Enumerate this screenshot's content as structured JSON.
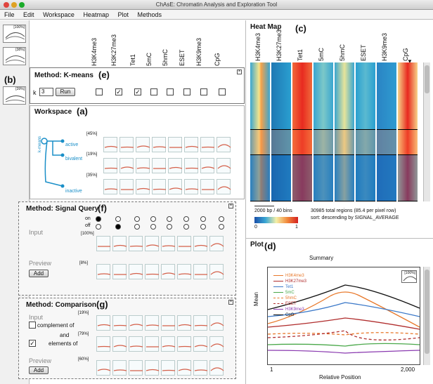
{
  "window": {
    "title": "ChAsE: Chromatin Analysis and Exploration Tool"
  },
  "menu": [
    "File",
    "Edit",
    "Workspace",
    "Heatmap",
    "Plot",
    "Methods"
  ],
  "columns": [
    "H3K4me3",
    "H3K27me3",
    "Tet1",
    "5mC",
    "5hmC",
    "ESET",
    "H3K9me3",
    "CpG"
  ],
  "sidebar": {
    "letter": "(b)",
    "thumbs": [
      "[100%]",
      "[38%]",
      "[39%]"
    ]
  },
  "kmeans": {
    "title": "Method: K-means",
    "letter": "(e)",
    "k_label": "k",
    "k_value": "3",
    "run_label": "Run",
    "checks": [
      false,
      true,
      true,
      false,
      false,
      false,
      false,
      false
    ]
  },
  "workspace": {
    "title": "Workspace",
    "letter": "(a)",
    "tree_label": "k-means",
    "clusters": [
      {
        "name": "active",
        "pct": "[45%]"
      },
      {
        "name": "bivalent",
        "pct": "[19%]"
      },
      {
        "name": "inactive",
        "pct": "[35%]"
      }
    ]
  },
  "signal_query": {
    "title": "Method: Signal Query",
    "letter": "(f)",
    "on_label": "on",
    "off_label": "off",
    "input_label": "Input",
    "input_pct": "[100%]",
    "preview_label": "Preview",
    "preview_pct": "[8%]",
    "add_label": "Add",
    "on_states": [
      true,
      false,
      false,
      false,
      false,
      false,
      false,
      false
    ],
    "off_states": [
      false,
      true,
      false,
      false,
      false,
      false,
      false,
      false
    ]
  },
  "comparison": {
    "title": "Method: Comparison",
    "letter": "(g)",
    "input_label": "Input",
    "row1_pct": "[19%]",
    "complement_label": "complement of",
    "and_label": "and",
    "row2_pct": "[79%]",
    "elements_label": "elements of",
    "complement_checked": false,
    "elements_checked": true,
    "preview_label": "Preview",
    "preview_pct": "[60%]",
    "add_label": "Add"
  },
  "heatmap": {
    "title": "Heat Map",
    "letter": "(c)",
    "scale_label": "2000 bp / 40 bins",
    "regions_label": "30985 total regions (85.4 per pixel row)",
    "sort_label": "sort: descending by SIGNAL_AVERAGE",
    "legend_min": "0",
    "legend_max": "1",
    "sort_marker": "▼"
  },
  "plot": {
    "title": "Plot",
    "letter": "(d)",
    "summary_label": "Summary",
    "ylabel": "Mean",
    "xlabel": "Relative Position",
    "xmin_label": "1",
    "xmax_label": "2,000",
    "thumb_pct": "[100%]",
    "legend": [
      {
        "name": "H3K4me3",
        "color": "#e8782a",
        "dash": false
      },
      {
        "name": "H3K27me3",
        "color": "#b02d2d",
        "dash": false
      },
      {
        "name": "Tet1",
        "color": "#3a78c8",
        "dash": false
      },
      {
        "name": "5mC",
        "color": "#4aa84a",
        "dash": false
      },
      {
        "name": "5hmC",
        "color": "#e8782a",
        "dash": true
      },
      {
        "name": "ESET",
        "color": "#b02d2d",
        "dash": true
      },
      {
        "name": "H3K9me3",
        "color": "#8a3ab0",
        "dash": false
      },
      {
        "name": "CpG",
        "color": "#111111",
        "dash": false
      }
    ]
  }
}
